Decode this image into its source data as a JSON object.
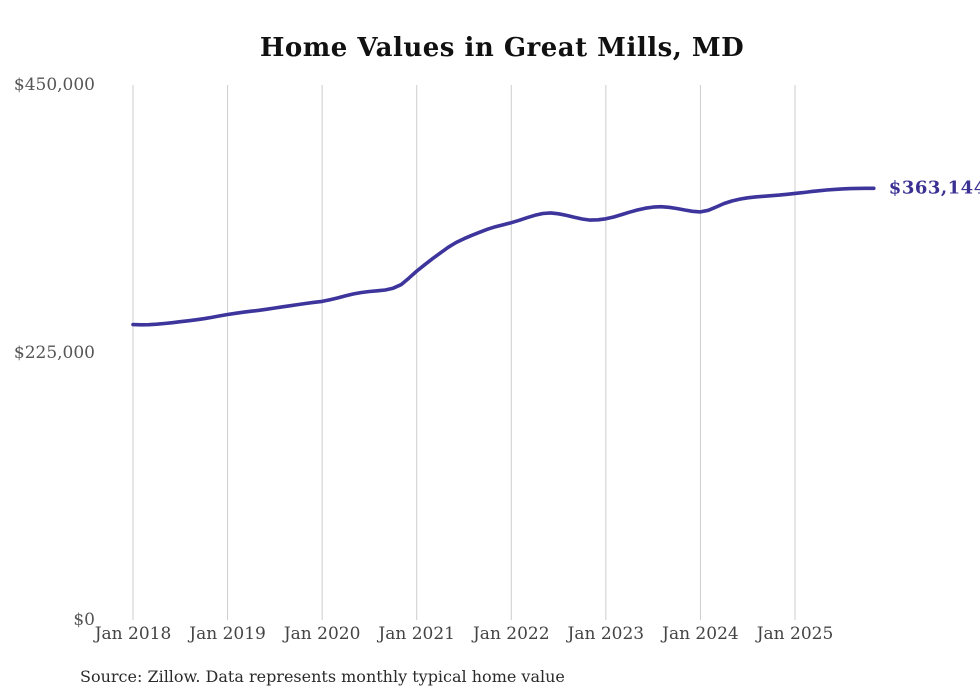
{
  "chart_data": {
    "type": "line",
    "title": "Home Values in Great Mills, MD",
    "source": "Source: Zillow. Data represents monthly typical home value",
    "end_label": "$363,144",
    "end_value": 363144,
    "ylim": [
      0,
      450000
    ],
    "grid": "vertical-only",
    "grid_color": "#cccccc",
    "line_color": "#3d359c",
    "y_ticks": [
      {
        "label": "$450,000",
        "value": 450000
      },
      {
        "label": "$225,000",
        "value": 225000
      },
      {
        "label": "$0",
        "value": 0
      }
    ],
    "x_ticks": [
      "Jan 2018",
      "Jan 2019",
      "Jan 2020",
      "Jan 2021",
      "Jan 2022",
      "Jan 2023",
      "Jan 2024",
      "Jan 2025"
    ],
    "series": [
      {
        "name": "Monthly typical home value",
        "start_month": "2018-01",
        "end_month": "2025-11",
        "values": [
          248500,
          248300,
          248400,
          248800,
          249400,
          250100,
          250900,
          251700,
          252500,
          253400,
          254500,
          255800,
          257000,
          258000,
          258900,
          259700,
          260500,
          261400,
          262400,
          263400,
          264400,
          265400,
          266300,
          267200,
          268000,
          269400,
          270900,
          272700,
          274300,
          275500,
          276300,
          276900,
          277600,
          279100,
          282000,
          287500,
          293500,
          298800,
          303900,
          308800,
          313500,
          317500,
          320700,
          323600,
          326200,
          328700,
          330800,
          332500,
          334200,
          336200,
          338400,
          340400,
          341900,
          342400,
          341700,
          340300,
          338700,
          337300,
          336400,
          336600,
          337500,
          339000,
          341000,
          343000,
          344900,
          346400,
          347300,
          347600,
          347100,
          346100,
          344900,
          343800,
          343300,
          344600,
          347400,
          350300,
          352400,
          354000,
          355100,
          355900,
          356400,
          356900,
          357400,
          358100,
          358800,
          359500,
          360300,
          361000,
          361700,
          362200,
          362600,
          362900,
          363000,
          363100,
          363144
        ]
      }
    ]
  }
}
